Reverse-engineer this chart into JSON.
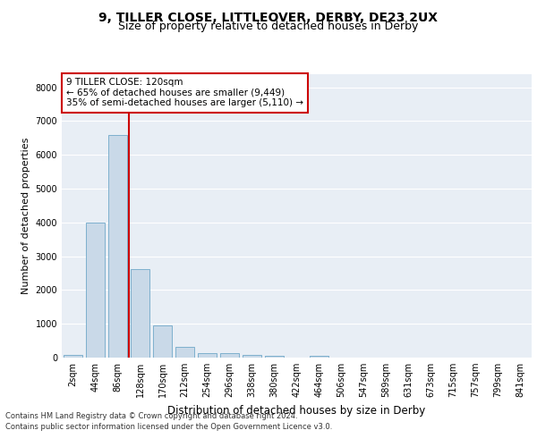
{
  "title1": "9, TILLER CLOSE, LITTLEOVER, DERBY, DE23 2UX",
  "title2": "Size of property relative to detached houses in Derby",
  "xlabel": "Distribution of detached houses by size in Derby",
  "ylabel": "Number of detached properties",
  "categories": [
    "2sqm",
    "44sqm",
    "86sqm",
    "128sqm",
    "170sqm",
    "212sqm",
    "254sqm",
    "296sqm",
    "338sqm",
    "380sqm",
    "422sqm",
    "464sqm",
    "506sqm",
    "547sqm",
    "589sqm",
    "631sqm",
    "673sqm",
    "715sqm",
    "757sqm",
    "799sqm",
    "841sqm"
  ],
  "bar_values": [
    70,
    4000,
    6600,
    2620,
    960,
    320,
    140,
    120,
    80,
    60,
    0,
    60,
    0,
    0,
    0,
    0,
    0,
    0,
    0,
    0,
    0
  ],
  "bar_color": "#c9d9e8",
  "bar_edgecolor": "#6fa8c8",
  "vline_color": "#cc0000",
  "annotation_text": "9 TILLER CLOSE: 120sqm\n← 65% of detached houses are smaller (9,449)\n35% of semi-detached houses are larger (5,110) →",
  "annotation_box_color": "#ffffff",
  "annotation_box_edgecolor": "#cc0000",
  "ylim": [
    0,
    8400
  ],
  "yticks": [
    0,
    1000,
    2000,
    3000,
    4000,
    5000,
    6000,
    7000,
    8000
  ],
  "footer1": "Contains HM Land Registry data © Crown copyright and database right 2024.",
  "footer2": "Contains public sector information licensed under the Open Government Licence v3.0.",
  "plot_bg_color": "#e8eef5",
  "title1_fontsize": 10,
  "title2_fontsize": 9,
  "xlabel_fontsize": 8.5,
  "ylabel_fontsize": 8,
  "tick_fontsize": 7,
  "footer_fontsize": 6,
  "annot_fontsize": 7.5
}
